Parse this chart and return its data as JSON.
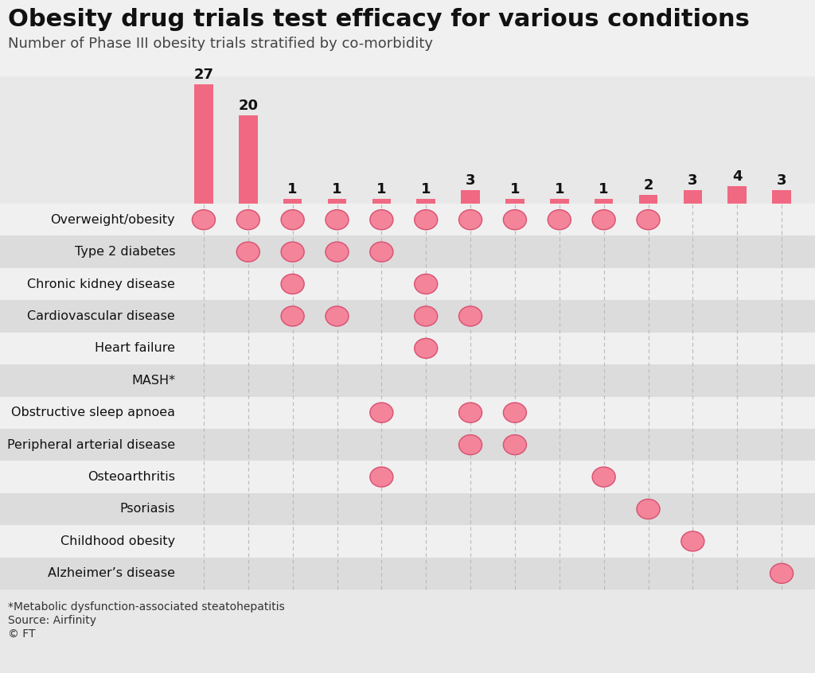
{
  "title": "Obesity drug trials test efficacy for various conditions",
  "subtitle": "Number of Phase III obesity trials stratified by co-morbidity",
  "bar_values": [
    27,
    20,
    1,
    1,
    1,
    1,
    3,
    1,
    1,
    1,
    2,
    3,
    4,
    3
  ],
  "conditions": [
    "Overweight/obesity",
    "Type 2 diabetes",
    "Chronic kidney disease",
    "Cardiovascular disease",
    "Heart failure",
    "MASH*",
    "Obstructive sleep apnoea",
    "Peripheral arterial disease",
    "Osteoarthritis",
    "Psoriasis",
    "Childhood obesity",
    "Alzheimer’s disease"
  ],
  "n_cols": 14,
  "dots": [
    [
      1,
      1,
      1,
      1,
      1,
      1,
      1,
      1,
      1,
      1,
      1,
      0,
      0,
      0
    ],
    [
      0,
      1,
      1,
      1,
      1,
      0,
      0,
      0,
      0,
      0,
      0,
      0,
      0,
      0
    ],
    [
      0,
      0,
      1,
      0,
      0,
      1,
      0,
      0,
      0,
      0,
      0,
      0,
      0,
      0
    ],
    [
      0,
      0,
      1,
      1,
      0,
      1,
      1,
      0,
      0,
      0,
      0,
      0,
      0,
      0
    ],
    [
      0,
      0,
      0,
      0,
      0,
      1,
      0,
      0,
      0,
      0,
      0,
      0,
      0,
      0
    ],
    [
      0,
      0,
      0,
      0,
      0,
      0,
      0,
      0,
      0,
      0,
      0,
      0,
      0,
      0
    ],
    [
      0,
      0,
      0,
      0,
      1,
      0,
      1,
      1,
      0,
      0,
      0,
      0,
      0,
      0
    ],
    [
      0,
      0,
      0,
      0,
      0,
      0,
      1,
      1,
      0,
      0,
      0,
      0,
      0,
      0
    ],
    [
      0,
      0,
      0,
      0,
      1,
      0,
      0,
      0,
      0,
      1,
      0,
      0,
      0,
      0
    ],
    [
      0,
      0,
      0,
      0,
      0,
      0,
      0,
      0,
      0,
      0,
      1,
      0,
      0,
      0
    ],
    [
      0,
      0,
      0,
      0,
      0,
      0,
      0,
      0,
      0,
      0,
      0,
      1,
      0,
      0
    ],
    [
      0,
      0,
      0,
      0,
      0,
      0,
      0,
      0,
      0,
      0,
      0,
      0,
      0,
      1
    ]
  ],
  "bar_color": "#F06882",
  "dot_fill_color": "#F4849A",
  "dot_edge_color": "#D85070",
  "bg_color": "#E8E8E8",
  "header_bg": "#FFFFFF",
  "row_light_color": "#F0F0F0",
  "row_dark_color": "#DCDCDC",
  "footnote1": "*Metabolic dysfunction-associated steatohepatitis",
  "footnote2": "Source: Airfinity",
  "footnote3": "© FT",
  "dashed_line_color": "#BBBBBB",
  "title_fontsize": 22,
  "subtitle_fontsize": 13,
  "label_fontsize": 11.5,
  "value_fontsize": 13
}
